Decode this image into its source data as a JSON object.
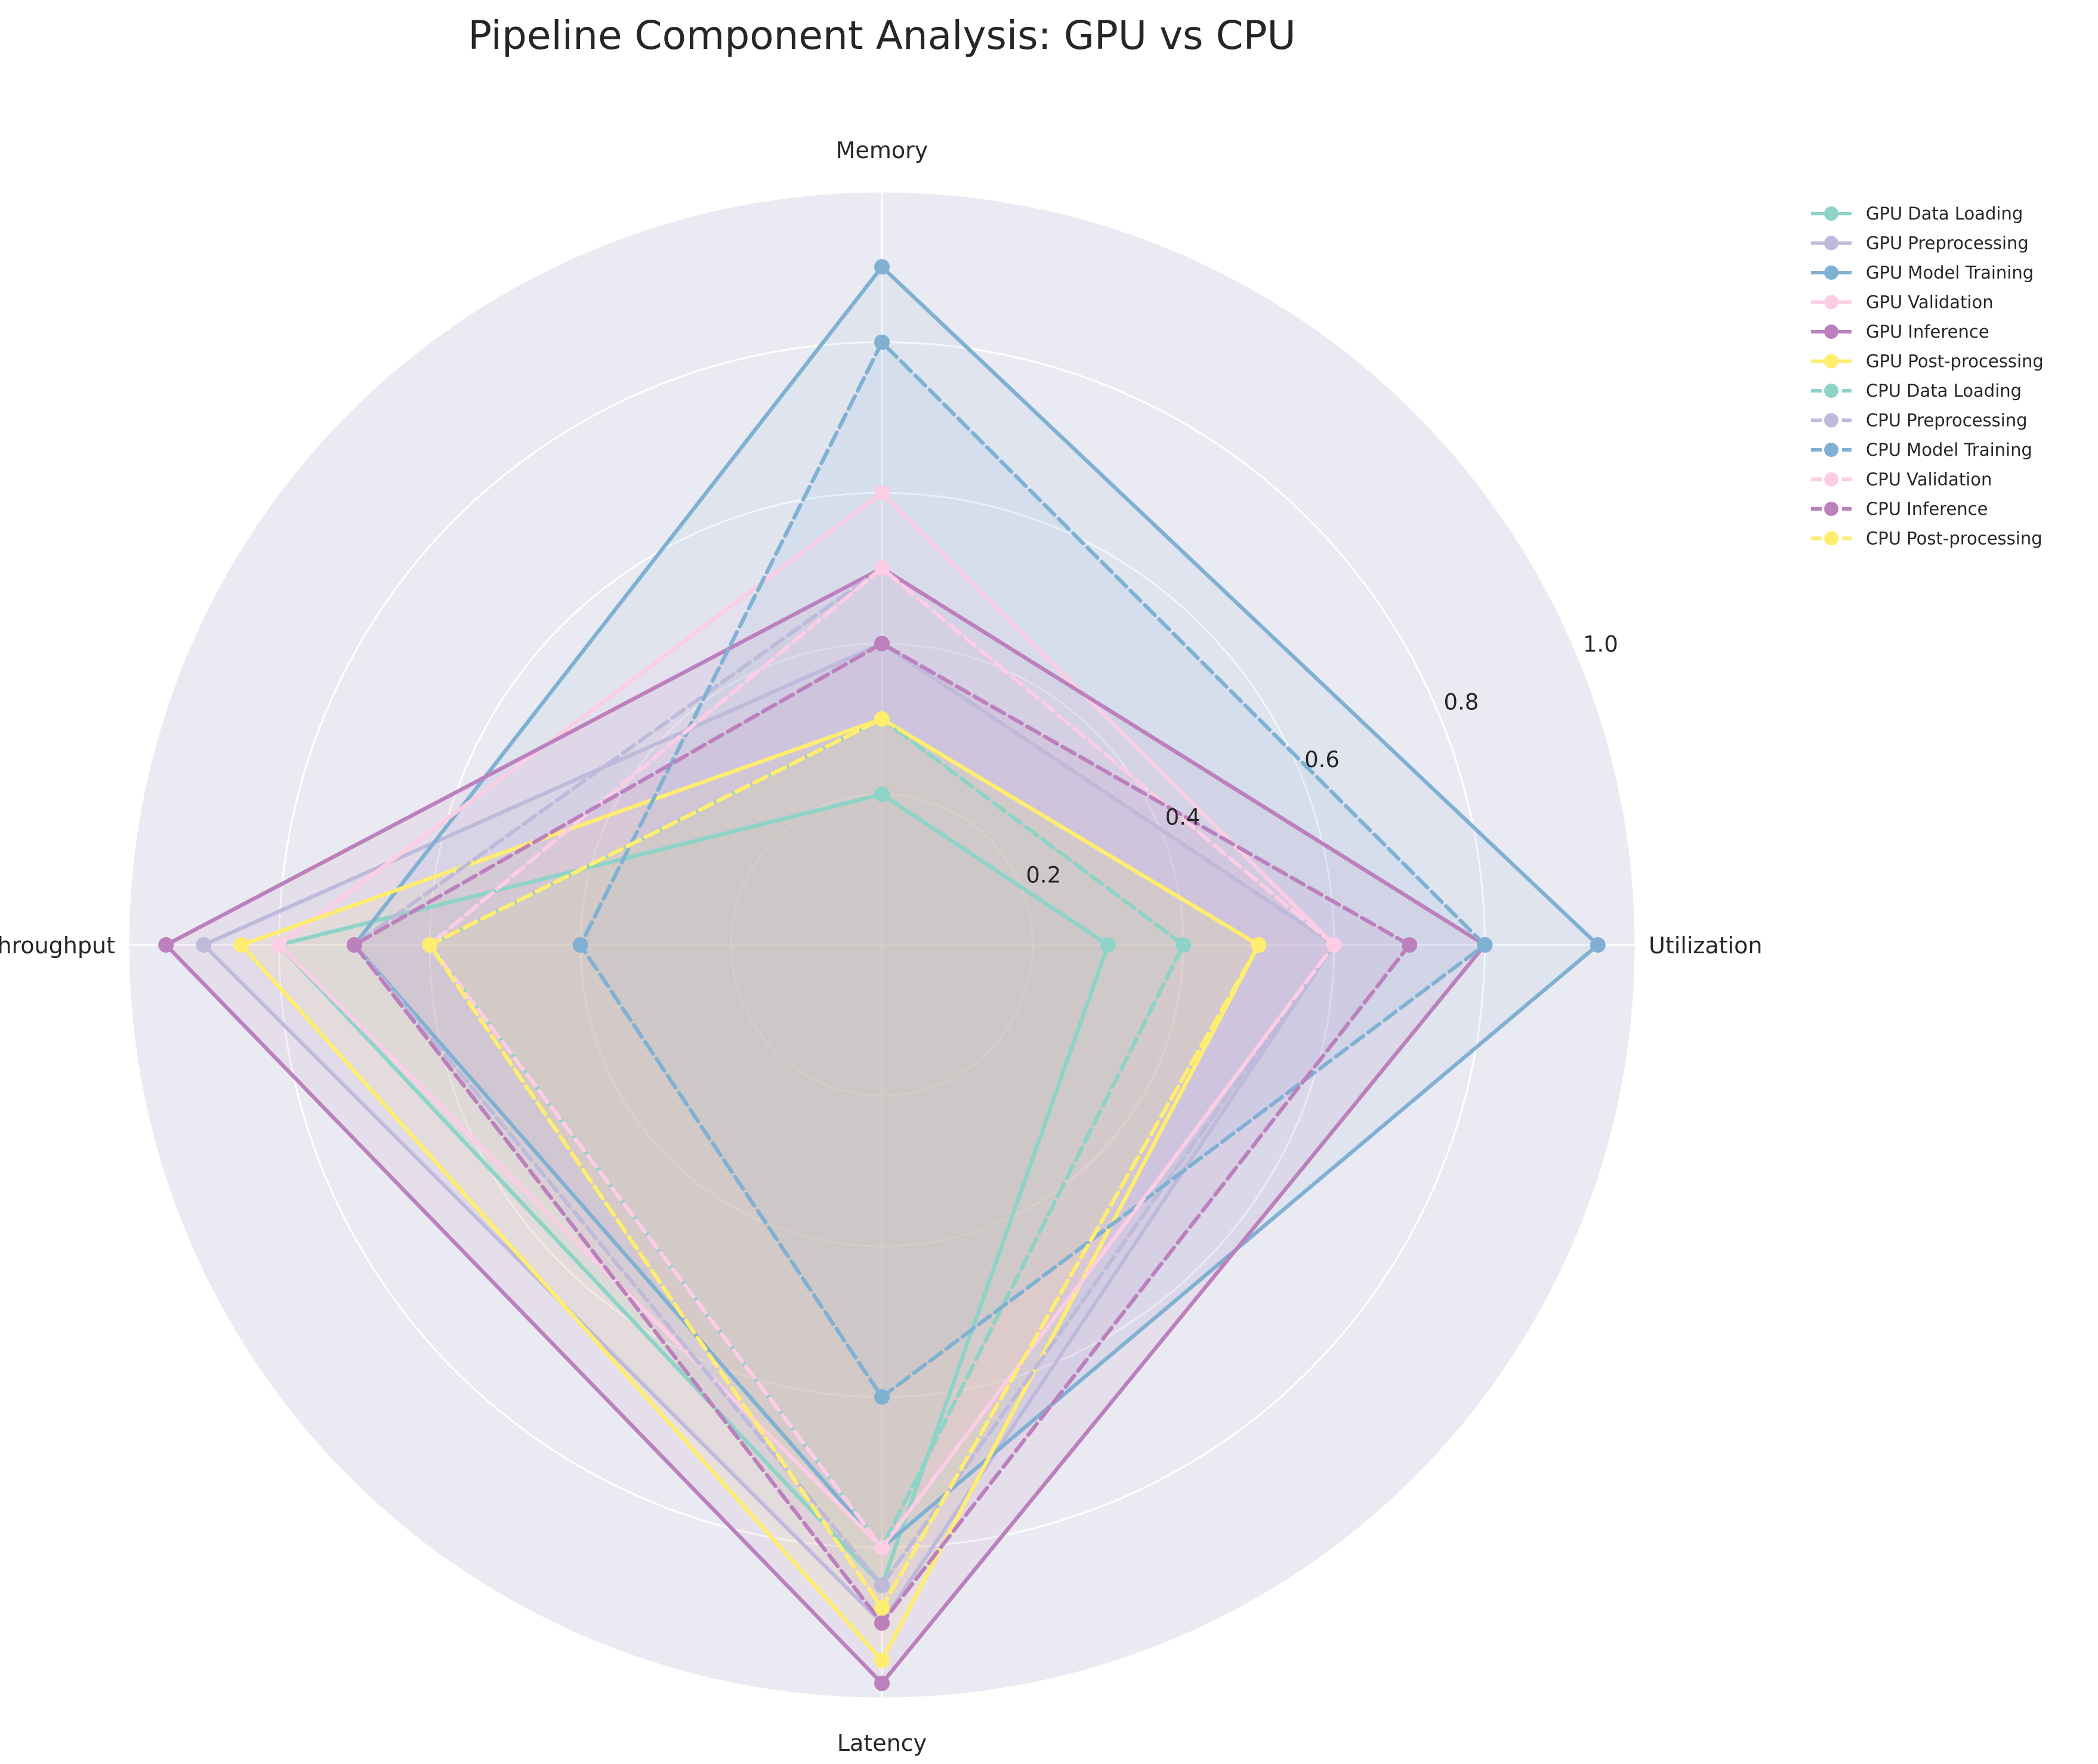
{
  "chart_data": {
    "type": "radar",
    "title": "Pipeline Component Analysis: GPU vs CPU",
    "axes": [
      "Utilization",
      "Memory",
      "Throughput",
      "Latency"
    ],
    "rlim": [
      0,
      1.0
    ],
    "rticks": [
      0.2,
      0.4,
      0.6,
      0.8,
      1.0
    ],
    "rtick_labels": [
      "0.2",
      "0.4",
      "0.6",
      "0.8",
      "1.0"
    ],
    "grid": true,
    "legend_position": "outside-top-right",
    "series": [
      {
        "name": "GPU Data Loading",
        "group": "GPU",
        "style": "solid",
        "color": "#8dd3c7",
        "values": [
          0.3,
          0.2,
          0.8,
          0.85
        ]
      },
      {
        "name": "GPU Preprocessing",
        "group": "GPU",
        "style": "solid",
        "color": "#bebada",
        "values": [
          0.6,
          0.4,
          0.9,
          0.9
        ]
      },
      {
        "name": "GPU Model Training",
        "group": "GPU",
        "style": "solid",
        "color": "#80b1d3",
        "values": [
          0.95,
          0.9,
          0.7,
          0.8
        ]
      },
      {
        "name": "GPU Validation",
        "group": "GPU",
        "style": "solid",
        "color": "#fccde5",
        "values": [
          0.6,
          0.6,
          0.8,
          0.8
        ]
      },
      {
        "name": "GPU Inference",
        "group": "GPU",
        "style": "solid",
        "color": "#bc80bd",
        "values": [
          0.8,
          0.5,
          0.95,
          0.98
        ]
      },
      {
        "name": "GPU Post-processing",
        "group": "GPU",
        "style": "solid",
        "color": "#ffed6f",
        "values": [
          0.5,
          0.3,
          0.85,
          0.95
        ]
      },
      {
        "name": "CPU Data Loading",
        "group": "CPU",
        "style": "dashed",
        "color": "#8dd3c7",
        "values": [
          0.4,
          0.3,
          0.6,
          0.8
        ]
      },
      {
        "name": "CPU Preprocessing",
        "group": "CPU",
        "style": "dashed",
        "color": "#bebada",
        "values": [
          0.6,
          0.5,
          0.7,
          0.85
        ]
      },
      {
        "name": "CPU Model Training",
        "group": "CPU",
        "style": "dashed",
        "color": "#80b1d3",
        "values": [
          0.8,
          0.8,
          0.4,
          0.6
        ]
      },
      {
        "name": "CPU Validation",
        "group": "CPU",
        "style": "dashed",
        "color": "#fccde5",
        "values": [
          0.6,
          0.5,
          0.6,
          0.8
        ]
      },
      {
        "name": "CPU Inference",
        "group": "CPU",
        "style": "dashed",
        "color": "#bc80bd",
        "values": [
          0.7,
          0.4,
          0.7,
          0.9
        ]
      },
      {
        "name": "CPU Post-processing",
        "group": "CPU",
        "style": "dashed",
        "color": "#ffed6f",
        "values": [
          0.5,
          0.3,
          0.6,
          0.88
        ]
      }
    ],
    "colors": {
      "plot_background": "#eaeaf2",
      "grid": "#ffffff",
      "text": "#262626"
    }
  }
}
